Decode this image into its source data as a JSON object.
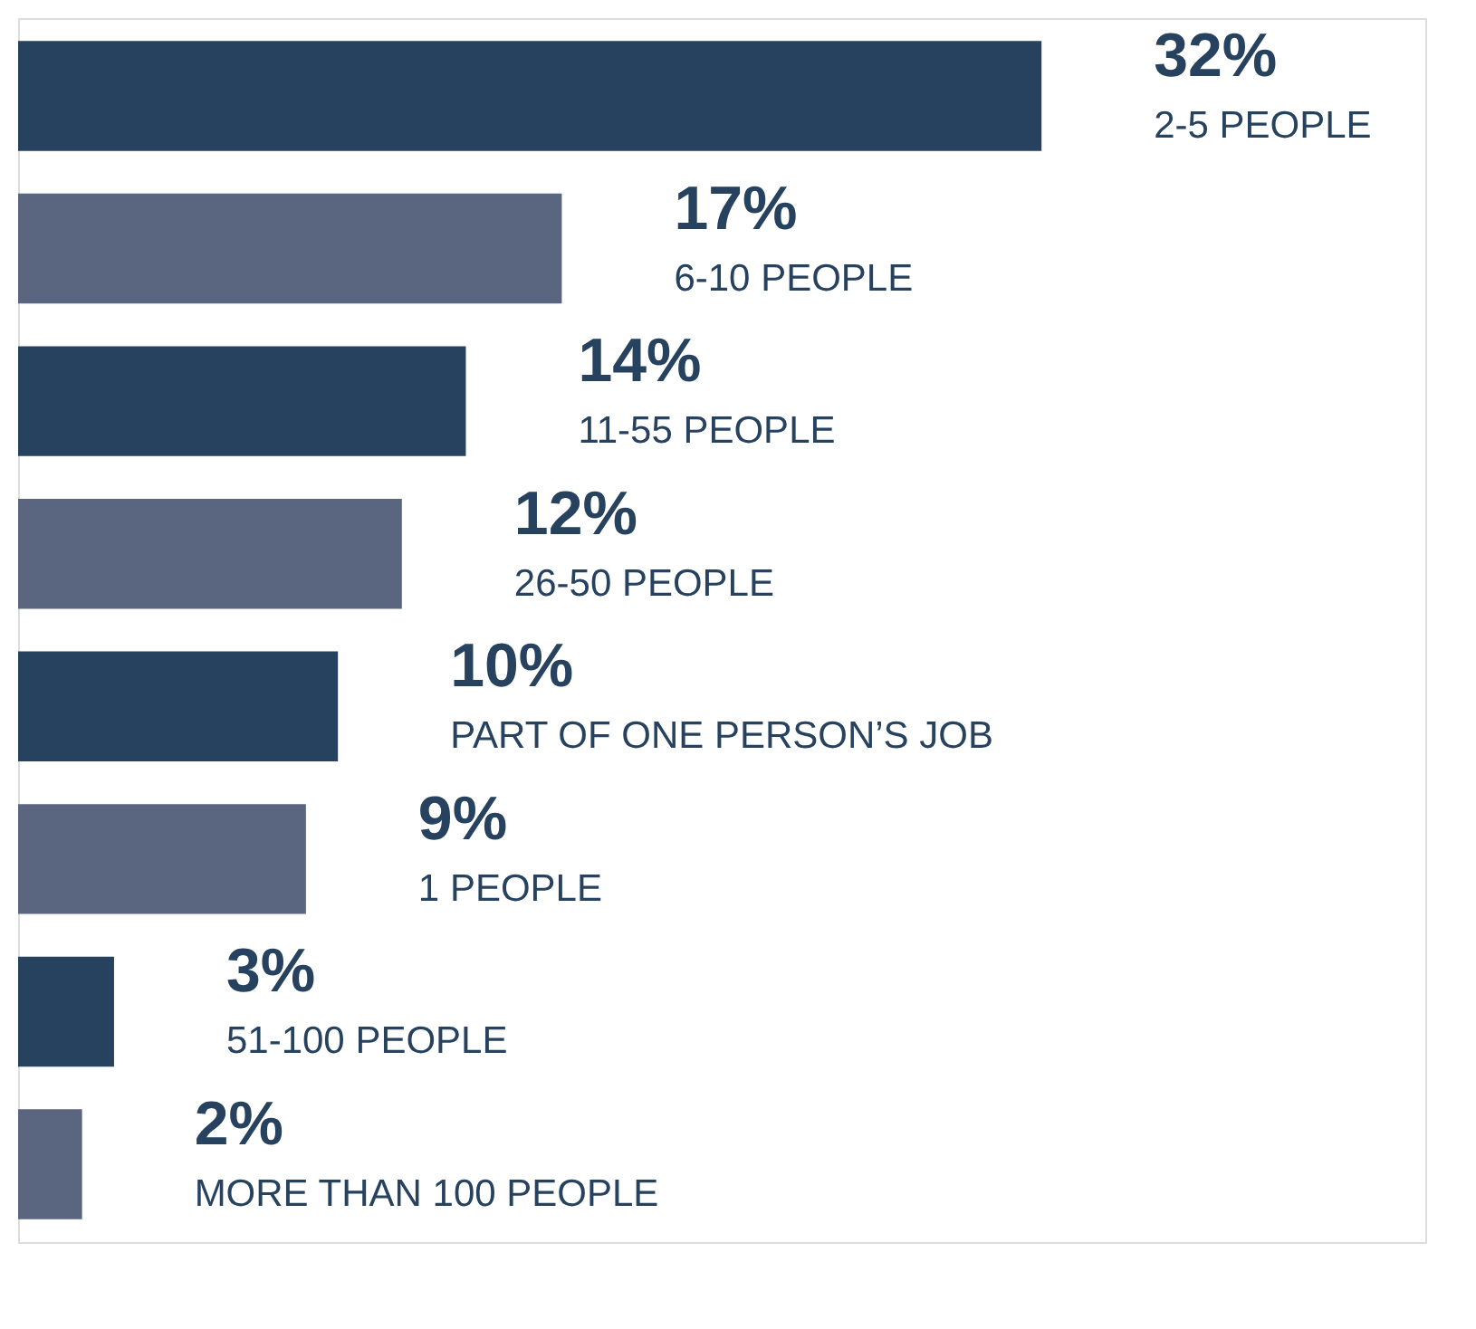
{
  "chart_data": {
    "type": "bar",
    "orientation": "horizontal",
    "tick_labels": false,
    "categories": [
      "2-5 PEOPLE",
      "6-10 PEOPLE",
      "11-55 PEOPLE",
      "26-50 PEOPLE",
      "PART OF ONE PERSON’S JOB",
      "1 PEOPLE",
      "51-100 PEOPLE",
      "MORE THAN 100 PEOPLE"
    ],
    "values": [
      32,
      17,
      14,
      12,
      10,
      9,
      3,
      2
    ],
    "value_labels": [
      "32%",
      "17%",
      "14%",
      "12%",
      "10%",
      "9%",
      "3%",
      "2%"
    ],
    "colors": [
      "#26425f",
      "#5a6680",
      "#26425f",
      "#5a6680",
      "#26425f",
      "#5a6680",
      "#26425f",
      "#5a6680"
    ],
    "xlim": [
      0,
      44
    ]
  }
}
